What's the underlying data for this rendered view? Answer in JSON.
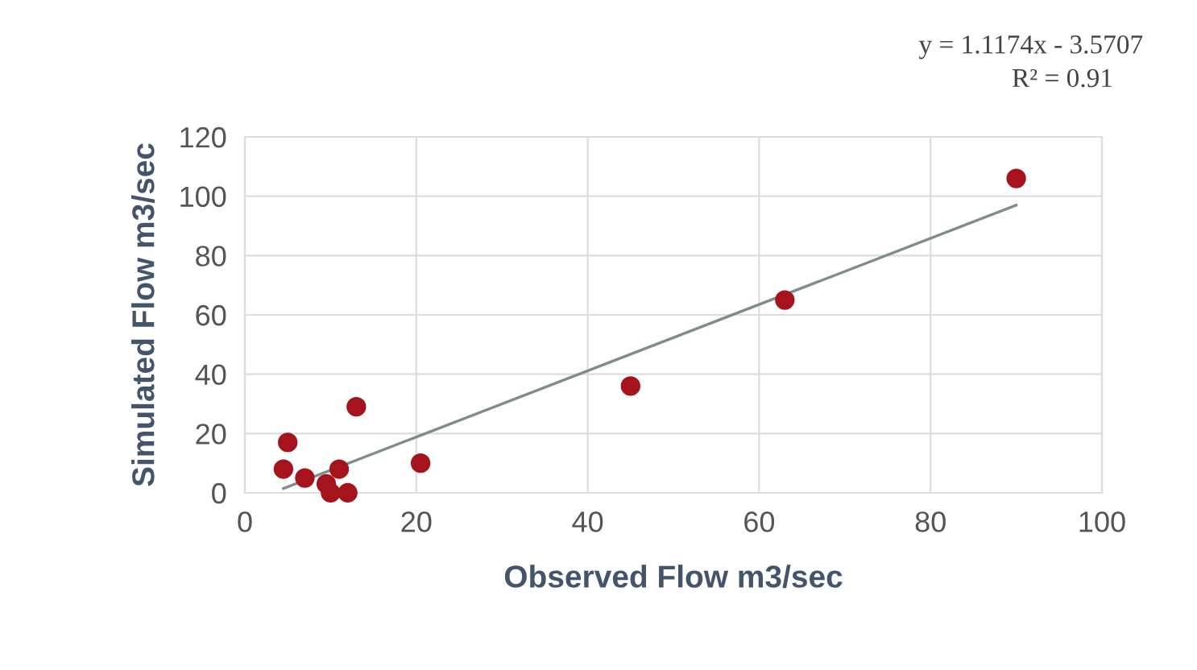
{
  "chart_data": {
    "type": "scatter",
    "xlabel": "Observed Flow m3/sec",
    "ylabel": "Simulated Flow m3/sec",
    "xlim": [
      0,
      100
    ],
    "xticks": [
      0,
      20,
      40,
      60,
      80,
      100
    ],
    "ylim": [
      0,
      120
    ],
    "yticks": [
      0,
      20,
      40,
      60,
      80,
      100,
      120
    ],
    "grid": true,
    "series": [
      {
        "marker": "circle",
        "color": "#a5141c",
        "x": [
          4.5,
          5,
          7,
          9.5,
          10,
          11,
          12,
          13,
          20.5,
          45,
          63,
          90
        ],
        "values": [
          8,
          17,
          5,
          3,
          0,
          8,
          0,
          29,
          10,
          36,
          65,
          106
        ]
      },
      {
        "type": "line",
        "marker": "none",
        "color": "#7f8c8d",
        "x": [
          4.5,
          90
        ],
        "values": [
          1.5,
          97
        ]
      }
    ],
    "annotations": [
      "y = 1.1174x - 3.5707",
      "R² = 0.91"
    ]
  }
}
